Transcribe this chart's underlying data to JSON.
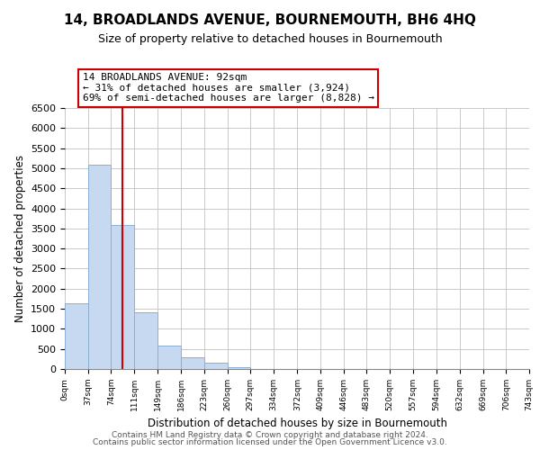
{
  "title": "14, BROADLANDS AVENUE, BOURNEMOUTH, BH6 4HQ",
  "subtitle": "Size of property relative to detached houses in Bournemouth",
  "xlabel": "Distribution of detached houses by size in Bournemouth",
  "ylabel": "Number of detached properties",
  "bar_edges": [
    0,
    37,
    74,
    111,
    149,
    186,
    223,
    260,
    297,
    334,
    372,
    409,
    446,
    483,
    520,
    557,
    594,
    632,
    669,
    706,
    743
  ],
  "bar_heights": [
    1640,
    5080,
    3580,
    1420,
    580,
    300,
    150,
    50,
    0,
    0,
    0,
    0,
    0,
    0,
    0,
    0,
    0,
    0,
    0,
    0
  ],
  "bar_color": "#c6d9f0",
  "bar_edge_color": "#8ab0d4",
  "property_line_x": 92,
  "property_line_color": "#cc0000",
  "annotation_text": "14 BROADLANDS AVENUE: 92sqm\n← 31% of detached houses are smaller (3,924)\n69% of semi-detached houses are larger (8,828) →",
  "annotation_box_color": "#ffffff",
  "annotation_box_edge": "#cc0000",
  "ylim": [
    0,
    6500
  ],
  "yticks": [
    0,
    500,
    1000,
    1500,
    2000,
    2500,
    3000,
    3500,
    4000,
    4500,
    5000,
    5500,
    6000,
    6500
  ],
  "tick_labels": [
    "0sqm",
    "37sqm",
    "74sqm",
    "111sqm",
    "149sqm",
    "186sqm",
    "223sqm",
    "260sqm",
    "297sqm",
    "334sqm",
    "372sqm",
    "409sqm",
    "446sqm",
    "483sqm",
    "520sqm",
    "557sqm",
    "594sqm",
    "632sqm",
    "669sqm",
    "706sqm",
    "743sqm"
  ],
  "footer_line1": "Contains HM Land Registry data © Crown copyright and database right 2024.",
  "footer_line2": "Contains public sector information licensed under the Open Government Licence v3.0.",
  "background_color": "#ffffff",
  "grid_color": "#c0c0c0",
  "title_fontsize": 11,
  "subtitle_fontsize": 9,
  "footer_fontsize": 6.5
}
